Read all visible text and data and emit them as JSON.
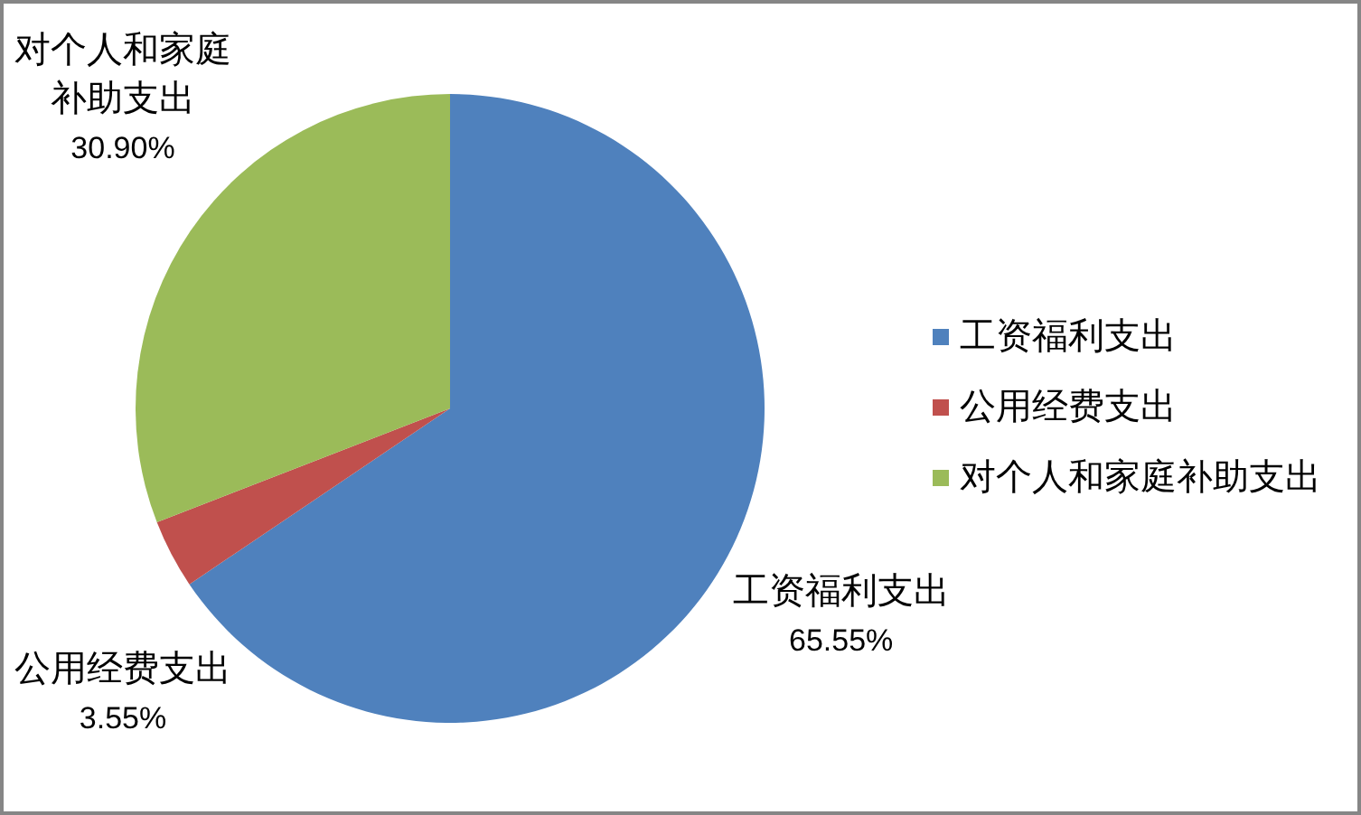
{
  "chart_data": {
    "type": "pie",
    "categories": [
      "工资福利支出",
      "公用经费支出",
      "对个人和家庭补助支出"
    ],
    "values": [
      65.55,
      3.55,
      30.9
    ],
    "value_labels": [
      "65.55%",
      "3.55%",
      "30.90%"
    ],
    "colors": [
      "#4f81bd",
      "#c0504d",
      "#9bbb59"
    ],
    "legend": "right"
  }
}
